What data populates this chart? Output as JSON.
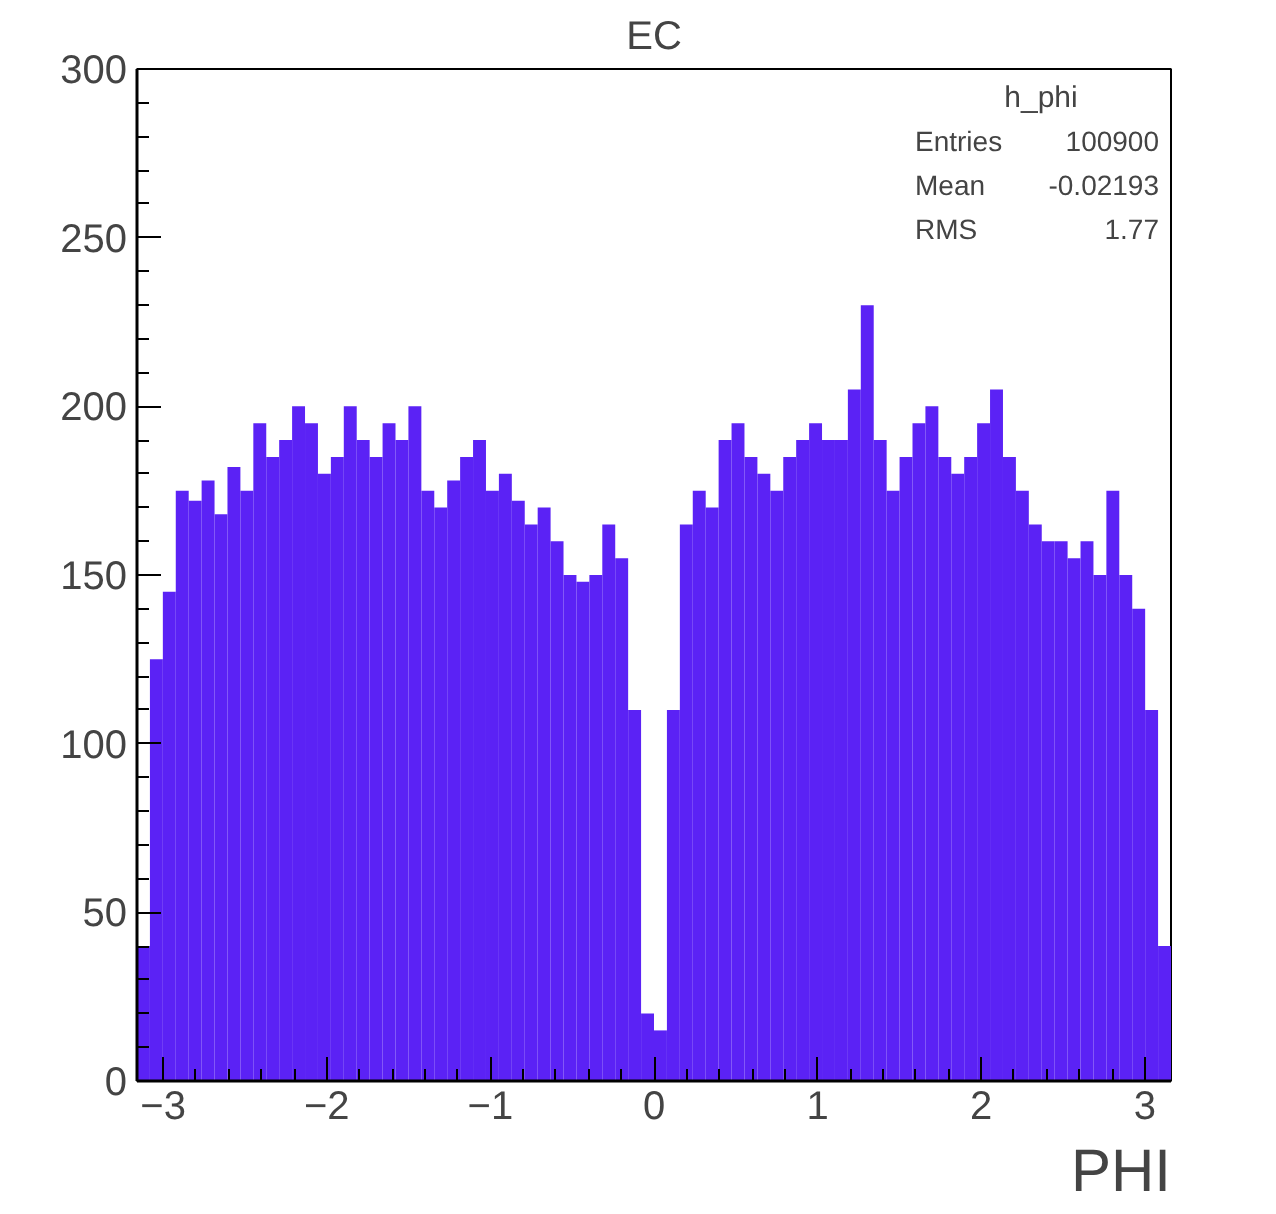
{
  "chart_data": {
    "type": "histogram",
    "title": "EC",
    "xlabel": "PHI",
    "annotations": [
      "h_phi",
      "Entries 100900",
      "Mean -0.02193",
      "RMS 1.77"
    ],
    "color": "#5b22f5",
    "bins": [
      -3.16,
      -3.081,
      -3.002,
      -2.923,
      -2.844,
      -2.765,
      -2.686,
      -2.607,
      -2.528,
      -2.449,
      -2.37,
      -2.291,
      -2.212,
      -2.133,
      -2.054,
      -1.975,
      -1.896,
      -1.817,
      -1.738,
      -1.659,
      -1.58,
      -1.501,
      -1.422,
      -1.343,
      -1.264,
      -1.185,
      -1.106,
      -1.027,
      -0.948,
      -0.869,
      -0.79,
      -0.711,
      -0.632,
      -0.553,
      -0.474,
      -0.395,
      -0.316,
      -0.237,
      -0.158,
      -0.079,
      0,
      0.079,
      0.158,
      0.237,
      0.316,
      0.395,
      0.474,
      0.553,
      0.632,
      0.711,
      0.79,
      0.869,
      0.948,
      1.027,
      1.106,
      1.185,
      1.264,
      1.343,
      1.422,
      1.501,
      1.58,
      1.659,
      1.738,
      1.817,
      1.896,
      1.975,
      2.054,
      2.133,
      2.212,
      2.291,
      2.37,
      2.449,
      2.528,
      2.607,
      2.686,
      2.765,
      2.844,
      2.923,
      3.002,
      3.081,
      3.16
    ],
    "values": [
      40,
      125,
      145,
      175,
      172,
      178,
      168,
      182,
      175,
      195,
      185,
      190,
      200,
      195,
      180,
      185,
      200,
      190,
      185,
      195,
      190,
      200,
      175,
      170,
      178,
      185,
      190,
      175,
      180,
      172,
      165,
      170,
      160,
      150,
      148,
      150,
      165,
      155,
      110,
      20,
      15,
      110,
      165,
      175,
      170,
      190,
      195,
      185,
      180,
      175,
      185,
      190,
      195,
      190,
      190,
      205,
      230,
      190,
      175,
      185,
      195,
      200,
      185,
      180,
      185,
      195,
      205,
      185,
      175,
      165,
      160,
      160,
      155,
      160,
      150,
      175,
      150,
      140,
      110,
      40
    ],
    "xlim": [
      -3.16,
      3.16
    ],
    "ylim": [
      0,
      300
    ],
    "xticks": [
      -3,
      -2,
      -1,
      0,
      1,
      2,
      3
    ],
    "yticks": [
      0,
      50,
      100,
      150,
      200,
      250,
      300
    ],
    "grid": false
  }
}
